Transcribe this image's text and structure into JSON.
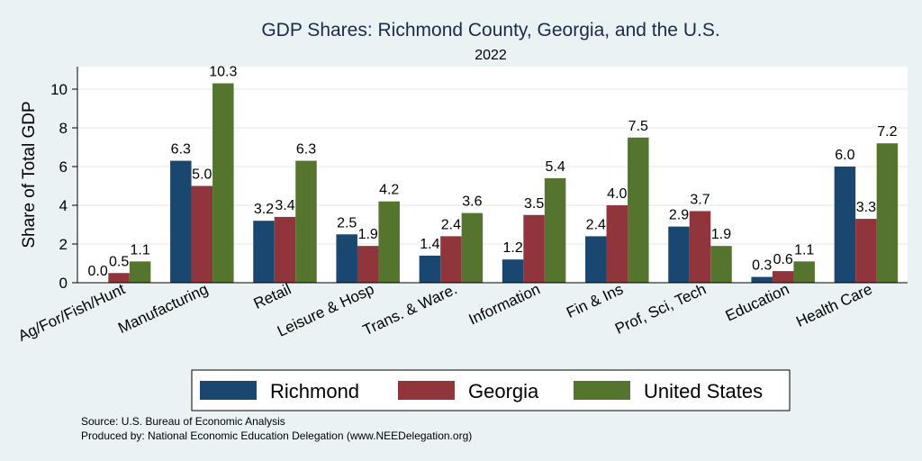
{
  "chart_data": {
    "type": "bar",
    "title": "GDP Shares: Richmond County, Georgia, and the U.S.",
    "subtitle": "2022",
    "xlabel": "",
    "ylabel": "Share of Total GDP",
    "ylim": [
      0,
      11
    ],
    "yticks": [
      0,
      2,
      4,
      6,
      8,
      10
    ],
    "grid": true,
    "legend_position": "bottom",
    "categories": [
      "Ag/For/Fish/Hunt",
      "Manufacturing",
      "Retail",
      "Leisure & Hosp",
      "Trans. & Ware.",
      "Information",
      "Fin & Ins",
      "Prof, Sci, Tech",
      "Education",
      "Health Care"
    ],
    "series": [
      {
        "name": "Richmond",
        "color": "#1a476f",
        "values": [
          0.0,
          6.3,
          3.2,
          2.5,
          1.4,
          1.2,
          2.4,
          2.9,
          0.3,
          6.0
        ]
      },
      {
        "name": "Georgia",
        "color": "#90353b",
        "values": [
          0.5,
          5.0,
          3.4,
          1.9,
          2.4,
          3.5,
          4.0,
          3.7,
          0.6,
          3.3
        ]
      },
      {
        "name": "United States",
        "color": "#55752f",
        "values": [
          1.1,
          10.3,
          6.3,
          4.2,
          3.6,
          5.4,
          7.5,
          1.9,
          1.1,
          7.2
        ]
      }
    ]
  },
  "notes": {
    "source": "Source: U.S. Bureau of Economic Analysis",
    "produced_by": "Produced by: National Economic Education Delegation (www.NEEDelegation.org)"
  }
}
